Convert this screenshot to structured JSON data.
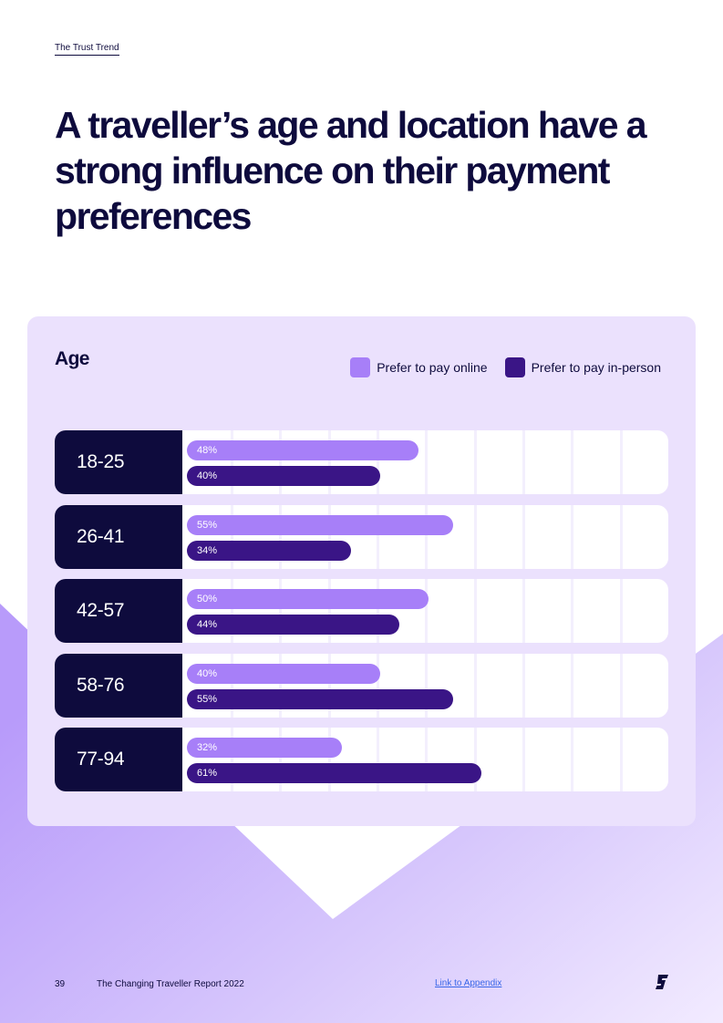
{
  "header": {
    "section_link": "The Trust Trend"
  },
  "title": "A traveller’s age and location have a strong influence on their payment preferences",
  "colors": {
    "navy": "#0e0b3d",
    "online": "#a77ff8",
    "inperson": "#3a1586",
    "panel": "#ebe1fd",
    "link": "#3a67e8"
  },
  "chart_data": {
    "type": "bar",
    "orientation": "horizontal",
    "title": "Age",
    "categories": [
      "18-25",
      "26-41",
      "42-57",
      "58-76",
      "77-94"
    ],
    "series": [
      {
        "name": "Prefer to pay online",
        "color": "#a77ff8",
        "values": [
          48,
          55,
          50,
          40,
          32
        ]
      },
      {
        "name": "Prefer to pay in-person",
        "color": "#3a1586",
        "values": [
          40,
          34,
          44,
          55,
          61
        ]
      }
    ],
    "value_suffix": "%",
    "grid": true,
    "legend_position": "top-right"
  },
  "footer": {
    "page_number": "39",
    "report_name": "The Changing Traveller Report 2022",
    "appendix_link": "Link to Appendix",
    "logo_icon": "brand-logo-icon"
  }
}
